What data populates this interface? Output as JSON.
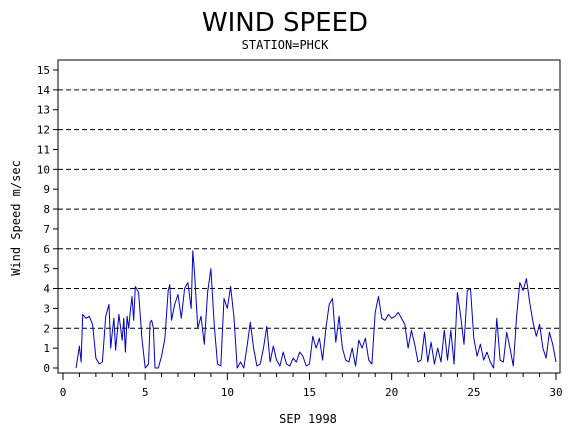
{
  "chart_data": {
    "type": "line",
    "title": "WIND SPEED",
    "subtitle": "STATION=PHCK",
    "xlabel": "SEP 1998",
    "ylabel": "Wind Speed m/sec",
    "xlim": [
      0,
      30
    ],
    "ylim": [
      0,
      15
    ],
    "x_ticks": [
      0,
      5,
      10,
      15,
      20,
      25,
      30
    ],
    "y_ticks": [
      0,
      1,
      2,
      3,
      4,
      5,
      6,
      7,
      8,
      9,
      10,
      11,
      12,
      13,
      14,
      15
    ],
    "grid": "horizontal dashed at even values",
    "grid_lines": [
      2,
      4,
      6,
      8,
      10,
      12,
      14
    ],
    "colors": {
      "series": "#0000cc",
      "axes": "#000000",
      "grid": "#000000"
    },
    "series": [
      {
        "x": [
          0.8,
          1.0,
          1.1,
          1.2,
          1.4,
          1.6,
          1.8,
          2.0,
          2.2,
          2.4,
          2.6,
          2.8,
          2.9,
          3.0,
          3.1,
          3.2,
          3.4,
          3.6,
          3.7,
          3.8,
          3.9,
          4.0,
          4.1,
          4.2,
          4.3,
          4.4,
          4.6,
          4.8,
          5.0,
          5.2,
          5.3,
          5.4,
          5.5,
          5.6,
          5.8,
          6.0,
          6.2,
          6.4,
          6.5,
          6.6,
          6.8,
          7.0,
          7.2,
          7.4,
          7.6,
          7.8,
          7.9,
          8.0,
          8.2,
          8.4,
          8.6,
          8.8,
          9.0,
          9.2,
          9.4,
          9.6,
          9.8,
          10.0,
          10.2,
          10.4,
          10.6,
          10.8,
          11.0,
          11.2,
          11.4,
          11.6,
          11.8,
          12.0,
          12.2,
          12.4,
          12.6,
          12.8,
          13.0,
          13.2,
          13.4,
          13.6,
          13.8,
          14.0,
          14.2,
          14.4,
          14.6,
          14.8,
          15.0,
          15.2,
          15.4,
          15.6,
          15.8,
          16.0,
          16.2,
          16.4,
          16.6,
          16.8,
          17.0,
          17.2,
          17.4,
          17.6,
          17.8,
          18.0,
          18.2,
          18.4,
          18.6,
          18.8,
          19.0,
          19.2,
          19.4,
          19.6,
          19.8,
          20.0,
          20.2,
          20.4,
          20.6,
          20.8,
          21.0,
          21.2,
          21.4,
          21.6,
          21.8,
          22.0,
          22.2,
          22.4,
          22.6,
          22.8,
          23.0,
          23.2,
          23.4,
          23.6,
          23.8,
          24.0,
          24.2,
          24.4,
          24.6,
          24.8,
          25.0,
          25.2,
          25.4,
          25.6,
          25.8,
          26.0,
          26.2,
          26.4,
          26.6,
          26.8,
          27.0,
          27.2,
          27.4,
          27.6,
          27.8,
          28.0,
          28.2,
          28.4,
          28.6,
          28.8,
          29.0,
          29.2,
          29.4,
          29.6,
          29.8,
          30.0
        ],
        "values": [
          0.0,
          1.1,
          0.3,
          2.7,
          2.5,
          2.6,
          2.2,
          0.5,
          0.2,
          0.3,
          2.6,
          3.2,
          1.0,
          1.8,
          2.5,
          0.9,
          2.7,
          1.4,
          2.5,
          0.8,
          2.6,
          2.0,
          2.9,
          3.6,
          2.4,
          4.1,
          3.8,
          1.5,
          0.0,
          0.2,
          2.3,
          2.4,
          2.0,
          0.0,
          0.0,
          0.6,
          1.5,
          3.9,
          4.2,
          2.4,
          3.2,
          3.7,
          2.5,
          4.0,
          4.3,
          3.0,
          5.9,
          4.8,
          2.0,
          2.6,
          1.2,
          3.8,
          5.0,
          2.2,
          0.2,
          0.1,
          3.5,
          3.0,
          4.1,
          2.6,
          0.0,
          0.3,
          0.0,
          1.1,
          2.3,
          1.0,
          0.1,
          0.2,
          1.0,
          2.1,
          0.3,
          1.1,
          0.4,
          0.1,
          0.8,
          0.2,
          0.1,
          0.5,
          0.3,
          0.8,
          0.6,
          0.1,
          0.2,
          1.6,
          1.0,
          1.5,
          0.4,
          2.0,
          3.2,
          3.5,
          1.3,
          2.6,
          1.0,
          0.4,
          0.3,
          1.0,
          0.1,
          1.4,
          1.0,
          1.5,
          0.4,
          0.2,
          2.8,
          3.6,
          2.5,
          2.4,
          2.7,
          2.5,
          2.6,
          2.8,
          2.5,
          2.2,
          1.0,
          1.9,
          1.2,
          0.3,
          0.4,
          1.8,
          0.3,
          1.3,
          0.2,
          1.0,
          0.3,
          1.9,
          0.4,
          1.9,
          0.2,
          3.8,
          2.6,
          1.2,
          3.9,
          4.0,
          1.5,
          0.6,
          1.2,
          0.4,
          0.8,
          0.3,
          0.0,
          2.5,
          0.4,
          0.3,
          1.8,
          1.0,
          0.1,
          2.6,
          4.3,
          3.9,
          4.5,
          3.3,
          2.3,
          1.6,
          2.2,
          1.0,
          0.5,
          1.8,
          1.2,
          0.3
        ]
      }
    ]
  }
}
